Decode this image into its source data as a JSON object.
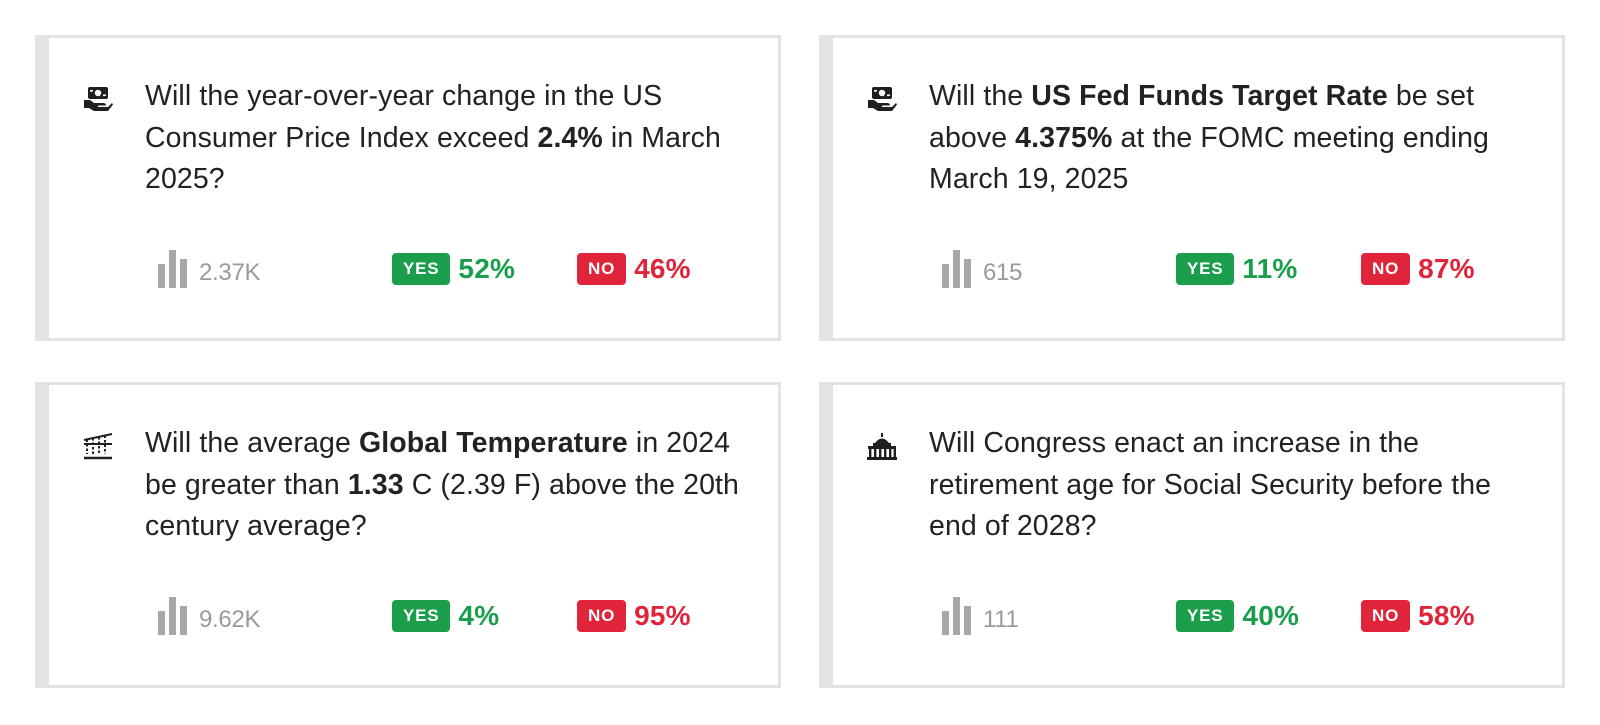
{
  "colors": {
    "yes": "#1b9e4b",
    "no": "#e0253a",
    "volume_text": "#9a9a9a",
    "card_border": "#e3e3e3"
  },
  "markets": [
    {
      "icon": "money-hand-icon",
      "question_parts": [
        {
          "text": "Will the year-over-year change in the US Consumer Price Index exceed ",
          "bold": false
        },
        {
          "text": "2.4%",
          "bold": true
        },
        {
          "text": " in March 2025?",
          "bold": false
        }
      ],
      "volume": "2.37K",
      "yes_label": "YES",
      "yes_pct": "52%",
      "no_label": "NO",
      "no_pct": "46%"
    },
    {
      "icon": "money-hand-icon",
      "question_parts": [
        {
          "text": "Will the ",
          "bold": false
        },
        {
          "text": "US Fed Funds Target Rate",
          "bold": true
        },
        {
          "text": " be set above ",
          "bold": false
        },
        {
          "text": "4.375%",
          "bold": true
        },
        {
          "text": " at the FOMC meeting ending March 19, 2025",
          "bold": false
        }
      ],
      "volume": "615",
      "yes_label": "YES",
      "yes_pct": "11%",
      "no_label": "NO",
      "no_pct": "87%"
    },
    {
      "icon": "climate-icon",
      "question_parts": [
        {
          "text": "Will the average ",
          "bold": false
        },
        {
          "text": "Global Temperature",
          "bold": true
        },
        {
          "text": " in 2024 be greater than ",
          "bold": false
        },
        {
          "text": "1.33",
          "bold": true
        },
        {
          "text": " C (2.39 F) above the 20th century average?",
          "bold": false
        }
      ],
      "volume": "9.62K",
      "yes_label": "YES",
      "yes_pct": "4%",
      "no_label": "NO",
      "no_pct": "95%"
    },
    {
      "icon": "capitol-building-icon",
      "question_parts": [
        {
          "text": "Will Congress enact an increase in the retirement age for Social Security before the end of 2028?",
          "bold": false
        }
      ],
      "volume": "111",
      "yes_label": "YES",
      "yes_pct": "40%",
      "no_label": "NO",
      "no_pct": "58%"
    }
  ]
}
